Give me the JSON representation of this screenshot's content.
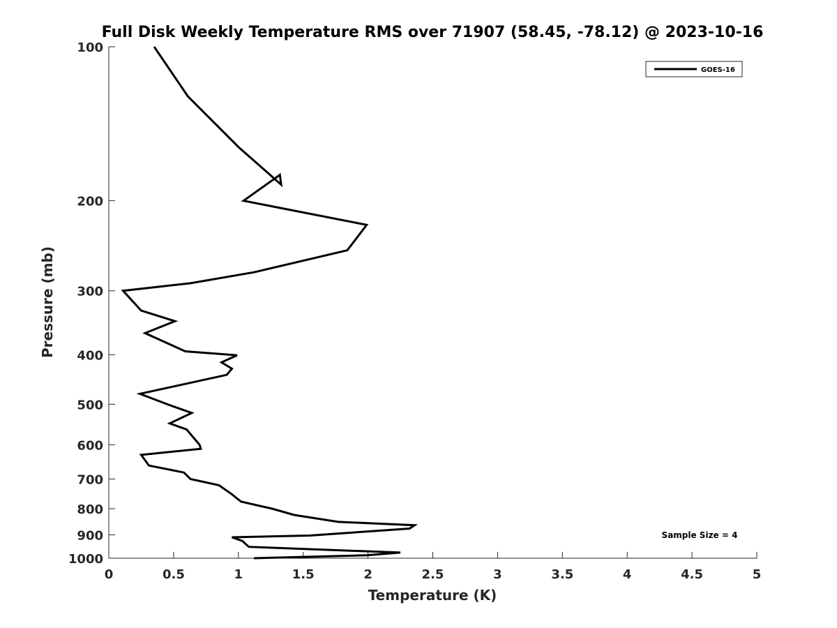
{
  "chart_data": {
    "type": "line",
    "title": "Full Disk Weekly Temperature RMS over 71907 (58.45, -78.12) @ 2023-10-16",
    "xlabel": "Temperature (K)",
    "ylabel": "Pressure (mb)",
    "xlim": [
      0,
      5
    ],
    "ylim": [
      100,
      1000
    ],
    "y_scale": "log",
    "y_reversed": true,
    "x_ticks": [
      "0",
      "0.5",
      "1",
      "1.5",
      "2",
      "2.5",
      "3",
      "3.5",
      "4",
      "4.5",
      "5"
    ],
    "y_ticks": [
      "100",
      "200",
      "300",
      "400",
      "500",
      "600",
      "700",
      "800",
      "900",
      "1000"
    ],
    "grid": false,
    "legend_position": "top-right",
    "series": [
      {
        "name": "GOES-16",
        "color": "#000000",
        "points": [
          [
            0.35,
            100
          ],
          [
            0.61,
            125
          ],
          [
            1.0,
            157
          ],
          [
            1.33,
            186
          ],
          [
            1.32,
            178
          ],
          [
            1.04,
            200
          ],
          [
            1.99,
            223
          ],
          [
            1.84,
            250
          ],
          [
            1.12,
            276
          ],
          [
            0.63,
            290
          ],
          [
            0.11,
            300
          ],
          [
            0.25,
            328
          ],
          [
            0.51,
            344
          ],
          [
            0.28,
            363
          ],
          [
            0.59,
            394
          ],
          [
            0.99,
            401
          ],
          [
            0.87,
            414
          ],
          [
            0.95,
            426
          ],
          [
            0.91,
            438
          ],
          [
            0.24,
            477
          ],
          [
            0.47,
            502
          ],
          [
            0.64,
            520
          ],
          [
            0.47,
            545
          ],
          [
            0.6,
            560
          ],
          [
            0.7,
            600
          ],
          [
            0.71,
            611
          ],
          [
            0.25,
            628
          ],
          [
            0.31,
            659
          ],
          [
            0.58,
            680
          ],
          [
            0.63,
            700
          ],
          [
            0.85,
            720
          ],
          [
            0.95,
            750
          ],
          [
            1.02,
            775
          ],
          [
            1.26,
            800
          ],
          [
            1.43,
            823
          ],
          [
            1.77,
            849
          ],
          [
            2.36,
            862
          ],
          [
            2.32,
            875
          ],
          [
            1.55,
            903
          ],
          [
            0.95,
            910
          ],
          [
            1.03,
            925
          ],
          [
            1.08,
            950
          ],
          [
            2.25,
            975
          ],
          [
            1.99,
            987
          ],
          [
            1.12,
            1000
          ]
        ]
      }
    ],
    "annotations": [
      "Sample Size = 4"
    ]
  }
}
